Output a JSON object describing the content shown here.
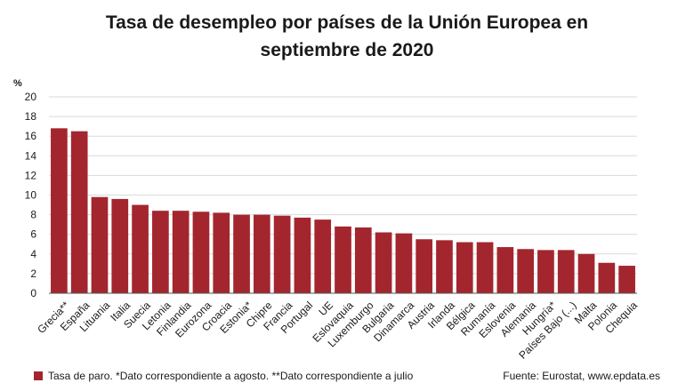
{
  "title_line1": "Tasa de desempleo por países de la Unión Europea en",
  "title_line2": "septiembre de 2020",
  "legend_label": "Tasa de paro. *Dato correspondiente a agosto. **Dato correspondiente a julio",
  "source": "Fuente: Eurostat, www.epdata.es",
  "bar_color": "#a3262e",
  "chart_data": {
    "type": "bar",
    "title": "Tasa de desempleo por países de la Unión Europea en septiembre de 2020",
    "ylabel": "%",
    "ylim": [
      0,
      20
    ],
    "yticks": [
      0,
      2,
      4,
      6,
      8,
      10,
      12,
      14,
      16,
      18,
      20
    ],
    "grid": true,
    "legend": "bottom-left",
    "categories": [
      "Grecia**",
      "España",
      "Lituania",
      "Italia",
      "Suecia",
      "Letonia",
      "Finlandia",
      "Eurozona",
      "Croacia",
      "Estonia*",
      "Chipre",
      "Francia",
      "Portugal",
      "UE",
      "Eslovaquia",
      "Luxemburgo",
      "Bulgaria",
      "Dinamarca",
      "Austria",
      "Irlanda",
      "Bélgica",
      "Rumanía",
      "Eslovenia",
      "Alemania",
      "Hungría*",
      "Países Bajo (...)",
      "Malta",
      "Polonia",
      "Chequia"
    ],
    "series": [
      {
        "name": "Tasa de paro. *Dato correspondiente a agosto. **Dato correspondiente a julio",
        "values": [
          16.8,
          16.5,
          9.8,
          9.6,
          9.0,
          8.4,
          8.4,
          8.3,
          8.2,
          8.0,
          8.0,
          7.9,
          7.7,
          7.5,
          6.8,
          6.7,
          6.2,
          6.1,
          5.5,
          5.4,
          5.2,
          5.2,
          4.7,
          4.5,
          4.4,
          4.4,
          4.0,
          3.1,
          2.8
        ]
      }
    ]
  }
}
